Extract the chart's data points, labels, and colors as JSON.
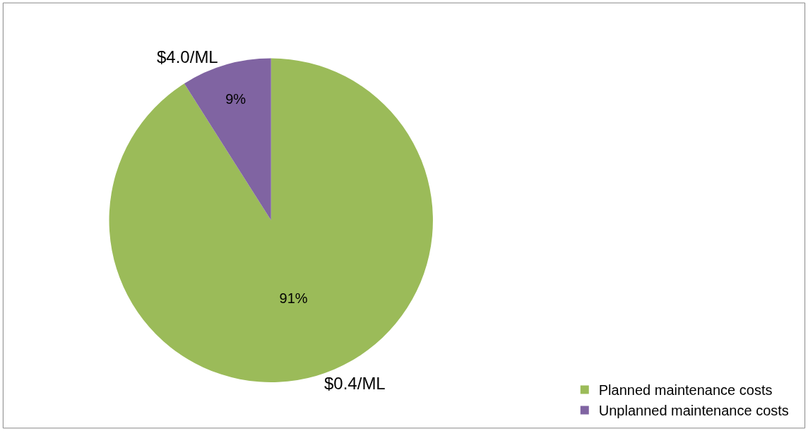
{
  "chart_data": {
    "type": "pie",
    "categories": [
      "Planned maintenance costs",
      "Unplanned maintenance costs"
    ],
    "values": [
      91,
      9
    ],
    "colors": [
      "#9bbb59",
      "#8064a2"
    ],
    "value_labels": [
      "91%",
      "9%"
    ],
    "annotations": [
      "$0.4/ML",
      "$4.0/ML"
    ],
    "legend": "bottom right"
  }
}
